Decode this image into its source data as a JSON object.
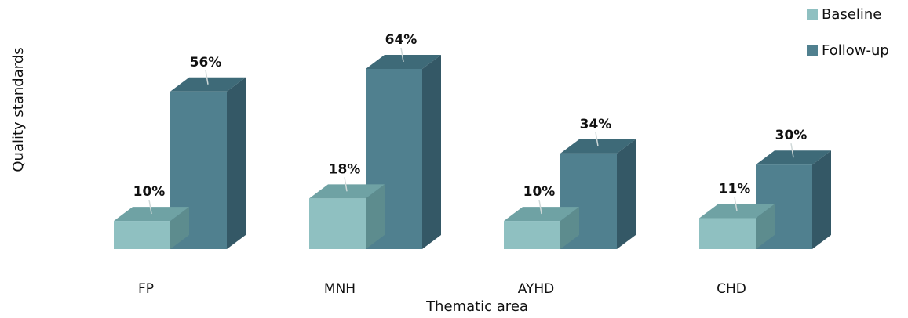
{
  "chart_data": {
    "type": "bar",
    "style": "3d",
    "xlabel": "Thematic area",
    "ylabel": "Quality standards",
    "categories": [
      "FP",
      "MNH",
      "AYHD",
      "CHD"
    ],
    "series": [
      {
        "name": "Baseline",
        "values": [
          10,
          18,
          10,
          11
        ],
        "labels": [
          "10%",
          "18%",
          "10%",
          "11%"
        ]
      },
      {
        "name": "Follow-up",
        "values": [
          56,
          64,
          34,
          30
        ],
        "labels": [
          "56%",
          "64%",
          "34%",
          "30%"
        ]
      }
    ],
    "ylim": [
      0,
      64
    ],
    "grid": false,
    "legend_position": "top-right"
  },
  "colors": {
    "baseline_front": "#8fc0c1",
    "baseline_top": "#6fa2a4",
    "baseline_side": "#5d8c8e",
    "followup_front": "#50808f",
    "followup_top": "#3e6a78",
    "followup_side": "#345866",
    "leader_line": "#cfd8d8"
  }
}
